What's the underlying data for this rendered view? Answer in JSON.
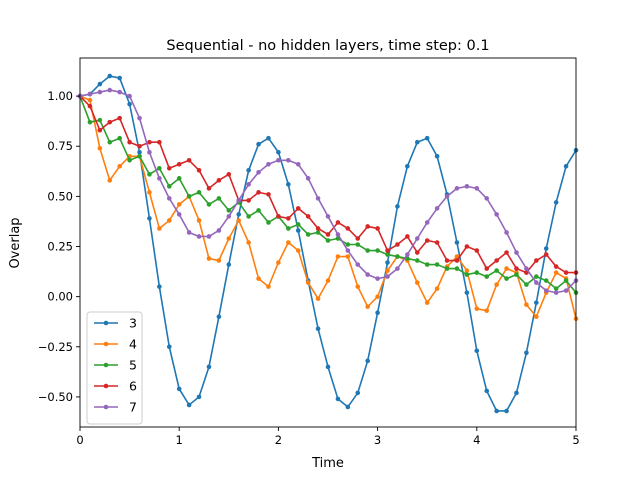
{
  "chart_data": {
    "type": "line",
    "title": "Sequential - no hidden layers, time step: 0.1",
    "xlabel": "Time",
    "ylabel": "Overlap",
    "xlim": [
      0,
      5
    ],
    "ylim": [
      -0.65,
      1.19
    ],
    "xticks": [
      "0",
      "1",
      "2",
      "3",
      "4",
      "5"
    ],
    "yticks": [
      "−0.50",
      "−0.25",
      "0.00",
      "0.25",
      "0.50",
      "0.75",
      "1.00"
    ],
    "ytick_values": [
      -0.5,
      -0.25,
      0,
      0.25,
      0.5,
      0.75,
      1.0
    ],
    "grid": false,
    "legend_position": "lower-left",
    "marker": "circle",
    "x": [
      0.0,
      0.1,
      0.2,
      0.3,
      0.4,
      0.5,
      0.6,
      0.7,
      0.8,
      0.9,
      1.0,
      1.1,
      1.2,
      1.3,
      1.4,
      1.5,
      1.6,
      1.7,
      1.8,
      1.9,
      2.0,
      2.1,
      2.2,
      2.3,
      2.4,
      2.5,
      2.6,
      2.7,
      2.8,
      2.9,
      3.0,
      3.1,
      3.2,
      3.3,
      3.4,
      3.5,
      3.6,
      3.7,
      3.8,
      3.9,
      4.0,
      4.1,
      4.2,
      4.3,
      4.4,
      4.5,
      4.6,
      4.7,
      4.8,
      4.9,
      5.0
    ],
    "series": [
      {
        "name": "3",
        "color": "#1f77b4",
        "values": [
          1.0,
          1.01,
          1.06,
          1.1,
          1.09,
          0.96,
          0.72,
          0.39,
          0.05,
          -0.25,
          -0.46,
          -0.54,
          -0.5,
          -0.35,
          -0.1,
          0.16,
          0.41,
          0.63,
          0.76,
          0.79,
          0.72,
          0.56,
          0.33,
          0.08,
          -0.16,
          -0.35,
          -0.51,
          -0.55,
          -0.48,
          -0.32,
          -0.08,
          0.17,
          0.45,
          0.65,
          0.77,
          0.79,
          0.7,
          0.51,
          0.27,
          0.02,
          -0.27,
          -0.47,
          -0.57,
          -0.57,
          -0.48,
          -0.28,
          -0.03,
          0.24,
          0.47,
          0.65,
          0.73
        ]
      },
      {
        "name": "4",
        "color": "#ff7f0e",
        "values": [
          1.0,
          0.98,
          0.74,
          0.58,
          0.65,
          0.7,
          0.7,
          0.52,
          0.34,
          0.38,
          0.46,
          0.5,
          0.38,
          0.19,
          0.18,
          0.29,
          0.38,
          0.27,
          0.09,
          0.05,
          0.17,
          0.27,
          0.23,
          0.07,
          -0.01,
          0.08,
          0.2,
          0.2,
          0.05,
          -0.05,
          0.0,
          0.13,
          0.2,
          0.18,
          0.07,
          -0.03,
          0.04,
          0.15,
          0.2,
          0.13,
          -0.06,
          -0.07,
          0.06,
          0.14,
          0.12,
          -0.04,
          -0.1,
          0.02,
          0.12,
          0.09,
          -0.11
        ]
      },
      {
        "name": "5",
        "color": "#2ca02c",
        "values": [
          1.0,
          0.87,
          0.88,
          0.77,
          0.79,
          0.68,
          0.7,
          0.61,
          0.64,
          0.55,
          0.59,
          0.5,
          0.52,
          0.46,
          0.49,
          0.43,
          0.47,
          0.4,
          0.43,
          0.37,
          0.4,
          0.34,
          0.36,
          0.31,
          0.32,
          0.28,
          0.29,
          0.26,
          0.26,
          0.23,
          0.23,
          0.21,
          0.2,
          0.19,
          0.18,
          0.16,
          0.16,
          0.14,
          0.14,
          0.11,
          0.12,
          0.1,
          0.13,
          0.09,
          0.11,
          0.06,
          0.1,
          0.08,
          0.04,
          0.08,
          0.02
        ]
      },
      {
        "name": "6",
        "color": "#d62728",
        "values": [
          1.0,
          0.95,
          0.83,
          0.87,
          0.89,
          0.77,
          0.75,
          0.77,
          0.77,
          0.64,
          0.66,
          0.68,
          0.63,
          0.54,
          0.58,
          0.61,
          0.48,
          0.48,
          0.52,
          0.51,
          0.4,
          0.39,
          0.44,
          0.4,
          0.34,
          0.31,
          0.37,
          0.34,
          0.29,
          0.35,
          0.34,
          0.23,
          0.26,
          0.3,
          0.22,
          0.28,
          0.27,
          0.18,
          0.18,
          0.25,
          0.23,
          0.14,
          0.18,
          0.22,
          0.14,
          0.12,
          0.18,
          0.21,
          0.15,
          0.12,
          0.12
        ]
      },
      {
        "name": "7",
        "color": "#9467bd",
        "values": [
          1.0,
          1.01,
          1.02,
          1.03,
          1.02,
          1.0,
          0.89,
          0.72,
          0.59,
          0.49,
          0.41,
          0.32,
          0.3,
          0.3,
          0.33,
          0.4,
          0.48,
          0.56,
          0.62,
          0.66,
          0.68,
          0.68,
          0.66,
          0.59,
          0.49,
          0.4,
          0.31,
          0.23,
          0.16,
          0.11,
          0.09,
          0.1,
          0.14,
          0.21,
          0.29,
          0.37,
          0.44,
          0.5,
          0.54,
          0.55,
          0.54,
          0.49,
          0.41,
          0.32,
          0.22,
          0.14,
          0.07,
          0.03,
          0.02,
          0.03,
          0.08
        ]
      }
    ]
  }
}
